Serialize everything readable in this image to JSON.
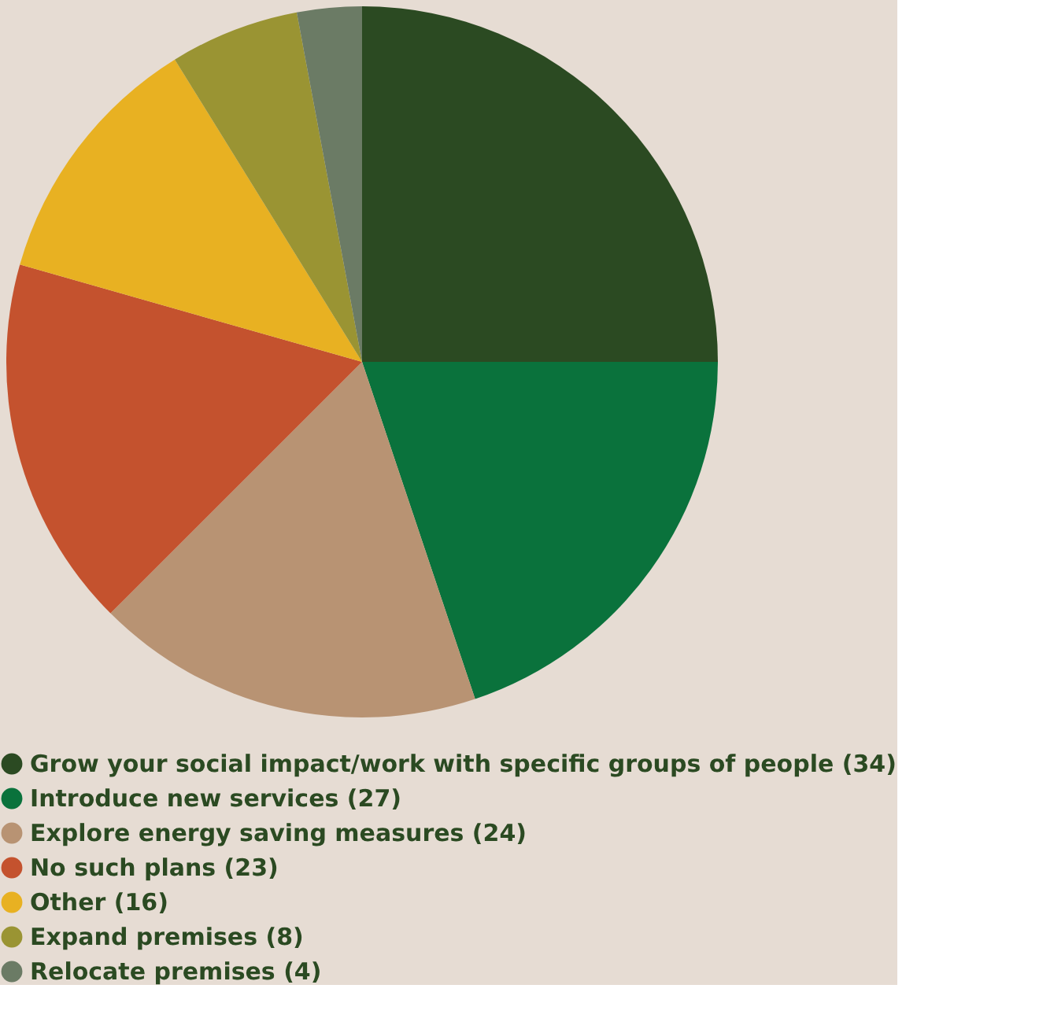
{
  "chart_data": {
    "type": "pie",
    "categories": [
      "Grow your social impact/work with specific groups of people (34)",
      "Introduce new services (27)",
      "Explore energy saving measures (24)",
      "No such plans (23)",
      "Other (16)",
      "Expand premises (8)",
      "Relocate premises (4)"
    ],
    "values": [
      34,
      27,
      24,
      23,
      16,
      8,
      4
    ],
    "colors": [
      "#2b4a22",
      "#0a723c",
      "#b89373",
      "#c4522e",
      "#e8b122",
      "#9a9433",
      "#6b7b65"
    ],
    "legend": "bottom"
  }
}
